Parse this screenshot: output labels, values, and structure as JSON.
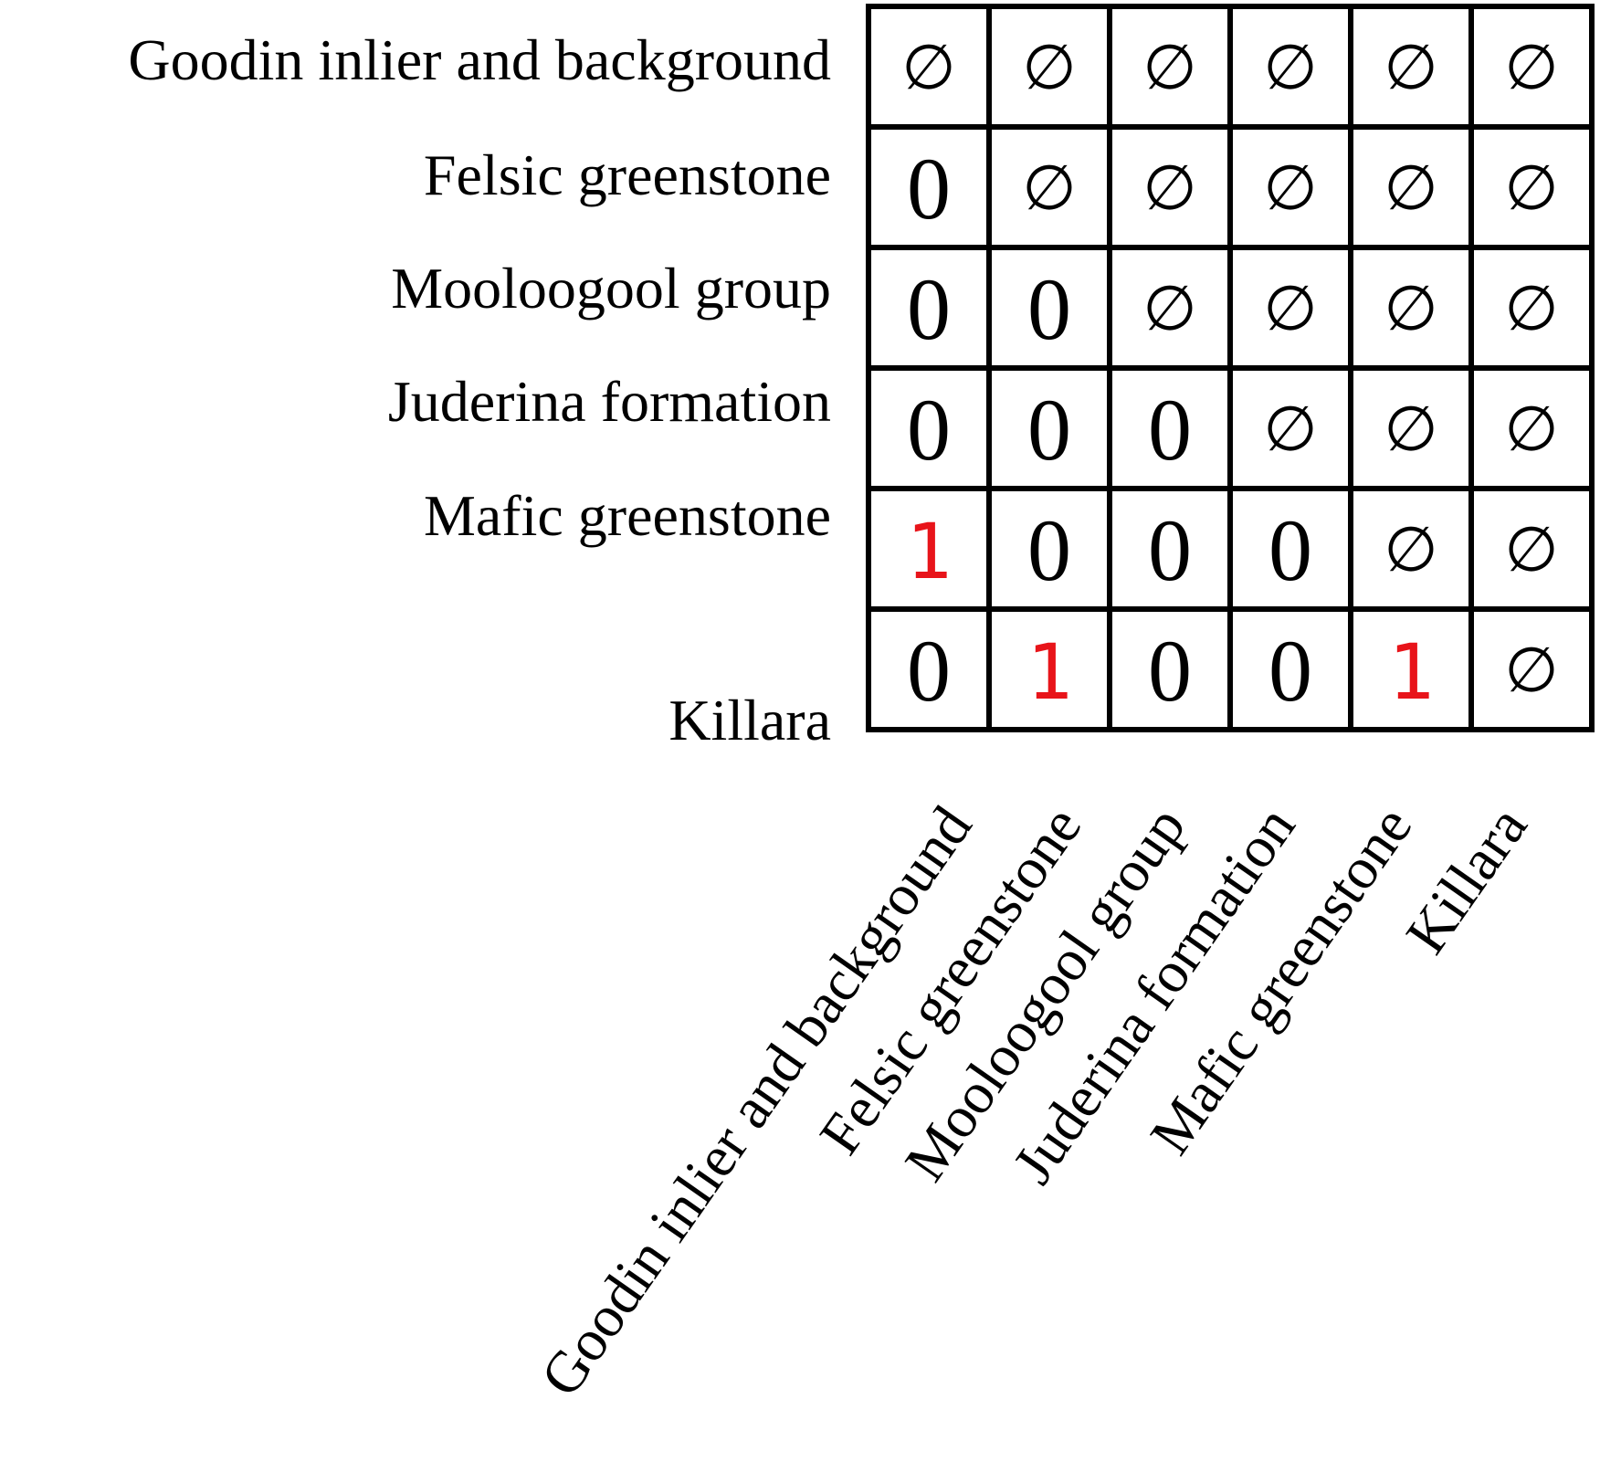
{
  "row_labels": [
    "Goodin inlier and background",
    "Felsic greenstone",
    "Mooloogool group",
    "Juderina formation",
    "Mafic greenstone",
    "Killara"
  ],
  "column_labels": [
    "Goodin inlier and background",
    "Felsic greenstone",
    "Mooloogool group",
    "Juderina formation",
    "Mafic greenstone",
    "Killara"
  ],
  "matrix": [
    [
      "∅",
      "∅",
      "∅",
      "∅",
      "∅",
      "∅"
    ],
    [
      "0",
      "∅",
      "∅",
      "∅",
      "∅",
      "∅"
    ],
    [
      "0",
      "0",
      "∅",
      "∅",
      "∅",
      "∅"
    ],
    [
      "0",
      "0",
      "0",
      "∅",
      "∅",
      "∅"
    ],
    [
      "1",
      "0",
      "0",
      "0",
      "∅",
      "∅"
    ],
    [
      "0",
      "1",
      "0",
      "0",
      "1",
      "∅"
    ]
  ],
  "colors": {
    "one": "#e8141a",
    "default": "#000000",
    "grid": "#000000"
  }
}
